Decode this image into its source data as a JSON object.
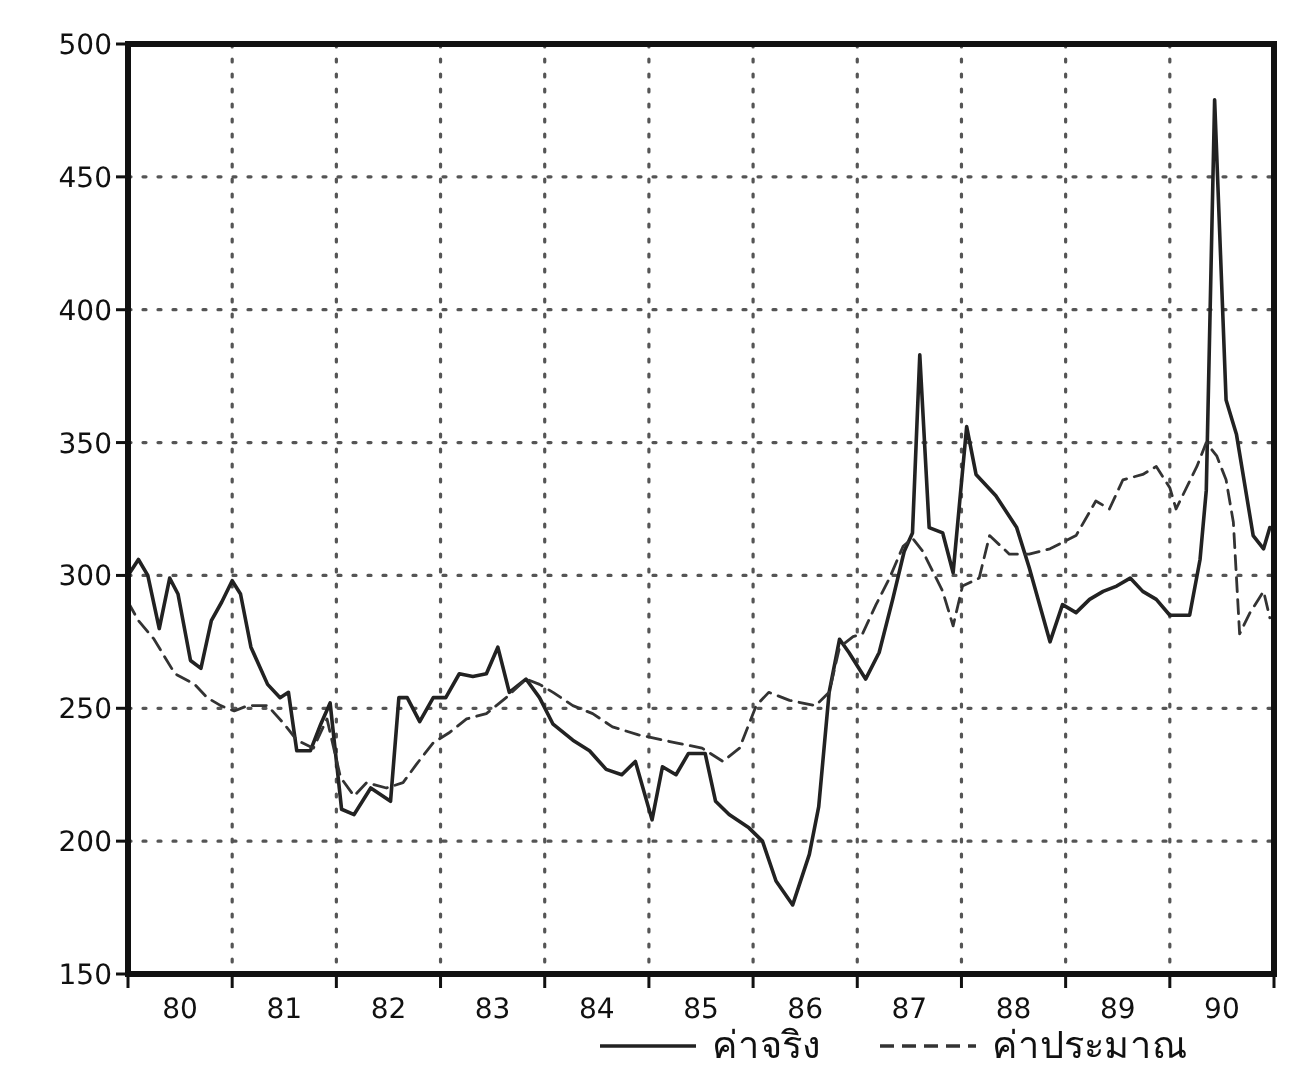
{
  "chart_data": {
    "type": "line",
    "xlim": [
      79.5,
      90.5
    ],
    "ylim": [
      150,
      500
    ],
    "xticks": [
      {
        "value": 79.5,
        "label": null
      },
      80,
      {
        "value": 80.5,
        "label": null
      },
      81,
      {
        "value": 81.5,
        "label": null
      },
      82,
      {
        "value": 82.5,
        "label": null
      },
      83,
      {
        "value": 83.5,
        "label": null
      },
      84,
      {
        "value": 84.5,
        "label": null
      },
      85,
      {
        "value": 85.5,
        "label": null
      },
      86,
      {
        "value": 86.5,
        "label": null
      },
      87,
      {
        "value": 87.5,
        "label": null
      },
      88,
      {
        "value": 88.5,
        "label": null
      },
      89,
      {
        "value": 89.5,
        "label": null
      },
      90,
      {
        "value": 90.5,
        "label": null
      }
    ],
    "yticks": [
      150,
      200,
      250,
      300,
      350,
      400,
      450,
      500
    ],
    "grid": true,
    "legend": "bottom",
    "marker": "none",
    "series": [
      {
        "name": "ค่าจริง",
        "color": "#222222",
        "line_style": "solid",
        "x": [
          79.5,
          79.6,
          79.69,
          79.8,
          79.9,
          79.98,
          80.1,
          80.2,
          80.3,
          80.4,
          80.5,
          80.58,
          80.68,
          80.84,
          80.96,
          81.04,
          81.12,
          81.25,
          81.35,
          81.44,
          81.55,
          81.67,
          81.83,
          82.02,
          82.1,
          82.18,
          82.3,
          82.43,
          82.55,
          82.68,
          82.81,
          82.94,
          83.05,
          83.16,
          83.32,
          83.45,
          83.58,
          83.77,
          83.93,
          84.09,
          84.24,
          84.37,
          84.53,
          84.63,
          84.76,
          84.88,
          85.04,
          85.14,
          85.27,
          85.46,
          85.59,
          85.72,
          85.88,
          86.04,
          86.13,
          86.23,
          86.33,
          86.42,
          86.58,
          86.71,
          86.84,
          86.95,
          87.03,
          87.1,
          87.19,
          87.32,
          87.42,
          87.55,
          87.64,
          87.83,
          88.03,
          88.15,
          88.35,
          88.47,
          88.6,
          88.73,
          88.86,
          88.99,
          89.12,
          89.24,
          89.37,
          89.5,
          89.69,
          89.79,
          89.85,
          89.93,
          90.04,
          90.14,
          90.3,
          90.4,
          90.46
        ],
        "values": [
          300,
          306,
          300,
          280,
          299,
          293,
          268,
          265,
          283,
          290,
          298,
          293,
          273,
          259,
          254,
          256,
          234,
          234,
          244,
          252,
          212,
          210,
          220,
          215,
          254,
          254,
          245,
          254,
          254,
          263,
          262,
          263,
          273,
          256,
          261,
          254,
          244,
          238,
          234,
          227,
          225,
          230,
          208,
          228,
          225,
          233,
          233,
          215,
          210,
          205,
          200,
          185,
          176,
          195,
          213,
          256,
          276,
          271,
          261,
          271,
          291,
          309,
          316,
          383,
          318,
          316,
          301,
          356,
          338,
          330,
          318,
          303,
          275,
          289,
          286,
          291,
          294,
          296,
          299,
          294,
          291,
          285,
          285,
          306,
          332,
          479,
          366,
          353,
          315,
          310,
          318
        ]
      },
      {
        "name": "ค่าประมาณ",
        "color": "#333333",
        "line_style": "dashed",
        "x": [
          79.5,
          79.6,
          79.75,
          79.95,
          80.14,
          80.26,
          80.39,
          80.52,
          80.65,
          80.84,
          81.0,
          81.12,
          81.28,
          81.41,
          81.54,
          81.67,
          81.79,
          81.98,
          82.14,
          82.27,
          82.43,
          82.59,
          82.75,
          82.94,
          83.13,
          83.32,
          83.45,
          83.58,
          83.77,
          83.96,
          84.15,
          84.4,
          84.76,
          85.01,
          85.21,
          85.37,
          85.53,
          85.65,
          85.85,
          86.1,
          86.23,
          86.33,
          86.46,
          86.55,
          86.68,
          86.81,
          86.94,
          87.03,
          87.13,
          87.32,
          87.42,
          87.51,
          87.67,
          87.77,
          87.96,
          88.15,
          88.35,
          88.6,
          88.79,
          88.92,
          89.05,
          89.24,
          89.37,
          89.5,
          89.56,
          89.76,
          89.85,
          89.95,
          90.04,
          90.11,
          90.17,
          90.27,
          90.4,
          90.46
        ],
        "values": [
          290,
          283,
          276,
          263,
          259,
          254,
          251,
          249,
          251,
          251,
          244,
          238,
          235,
          246,
          224,
          217,
          222,
          220,
          222,
          229,
          237,
          241,
          246,
          248,
          254,
          261,
          259,
          256,
          251,
          248,
          243,
          240,
          237,
          235,
          230,
          235,
          251,
          256,
          253,
          251,
          256,
          273,
          277,
          278,
          289,
          299,
          311,
          314,
          309,
          294,
          281,
          296,
          299,
          315,
          308,
          308,
          310,
          315,
          328,
          325,
          336,
          338,
          341,
          333,
          325,
          341,
          350,
          345,
          336,
          320,
          278,
          286,
          294,
          284
        ]
      }
    ]
  }
}
